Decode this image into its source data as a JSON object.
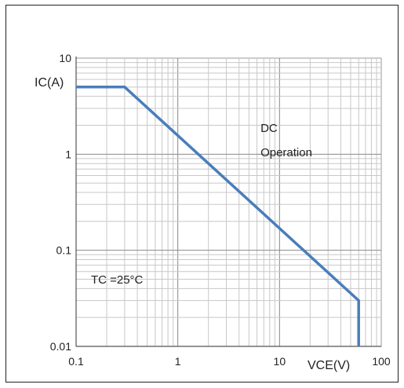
{
  "chart_data": {
    "type": "line",
    "xscale": "log",
    "yscale": "log",
    "xlim": [
      0.1,
      100
    ],
    "ylim": [
      0.01,
      10
    ],
    "xticks": [
      0.1,
      1,
      10,
      100
    ],
    "xtick_labels": [
      "0.1",
      "1",
      "10",
      "100"
    ],
    "yticks": [
      0.01,
      0.1,
      1,
      10
    ],
    "ytick_labels": [
      "0.01",
      "0.1",
      "1",
      "10"
    ],
    "xlabel": "VCE(V)",
    "ylabel": "IC(A)",
    "grid": true,
    "line_color": "#4a7ebb",
    "series": [
      {
        "x": [
          0.1,
          0.3,
          60,
          60
        ],
        "y": [
          5,
          5,
          0.03,
          0.01
        ]
      }
    ],
    "annotations": [
      {
        "text": "DC",
        "x": 6.5,
        "y": 1.7
      },
      {
        "text": "Operation",
        "x": 6.5,
        "y": 0.95
      },
      {
        "text": "TC =25°C",
        "x": 0.14,
        "y": 0.045
      }
    ]
  }
}
